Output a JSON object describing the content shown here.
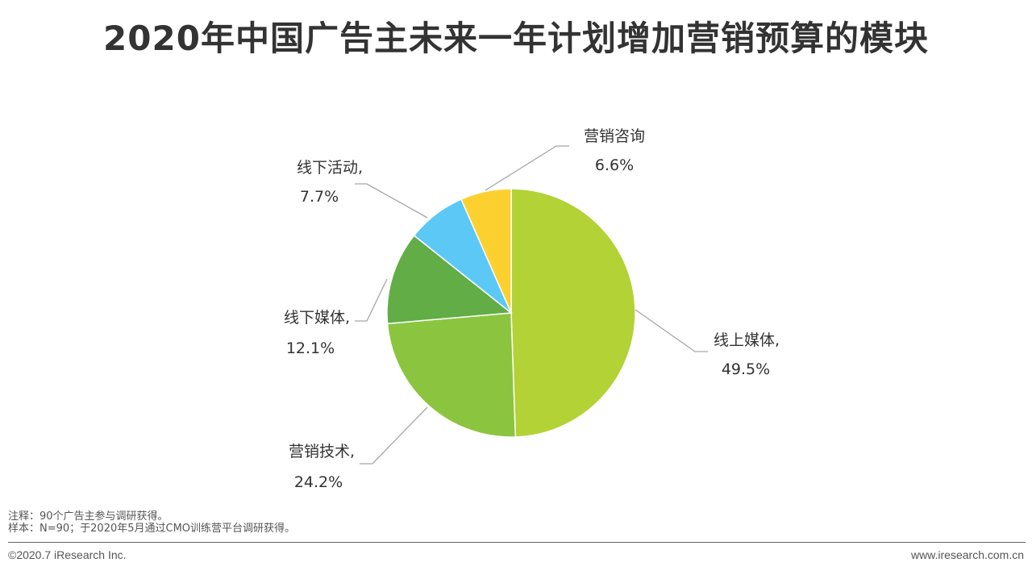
{
  "title": "2020年中国广告主未来一年计划增加营销预算的模块",
  "chart_data": {
    "type": "pie",
    "slices": [
      {
        "label": "线上媒体,",
        "value": 49.5,
        "value_label": "49.5%",
        "color": "#b3d235"
      },
      {
        "label": "营销技术,",
        "value": 24.2,
        "value_label": "24.2%",
        "color": "#8bc53f"
      },
      {
        "label": "线下媒体,",
        "value": 12.1,
        "value_label": "12.1%",
        "color": "#62ad45"
      },
      {
        "label": "线下活动,",
        "value": 7.7,
        "value_label": "7.7%",
        "color": "#5bc8f5"
      },
      {
        "label": "营销咨询",
        "value": 6.6,
        "value_label": "6.6%",
        "color": "#fcd12f"
      }
    ],
    "start_angle": "12 o'clock",
    "direction": "clockwise",
    "leader_line_color": "#a6a6a6"
  },
  "notes": {
    "note": "注释：90个广告主参与调研获得。",
    "sample": "样本：N=90；于2020年5月通过CMO训练营平台调研获得。"
  },
  "footer": {
    "copyright": "©2020.7 iResearch Inc.",
    "website": "www.iresearch.com.cn"
  }
}
